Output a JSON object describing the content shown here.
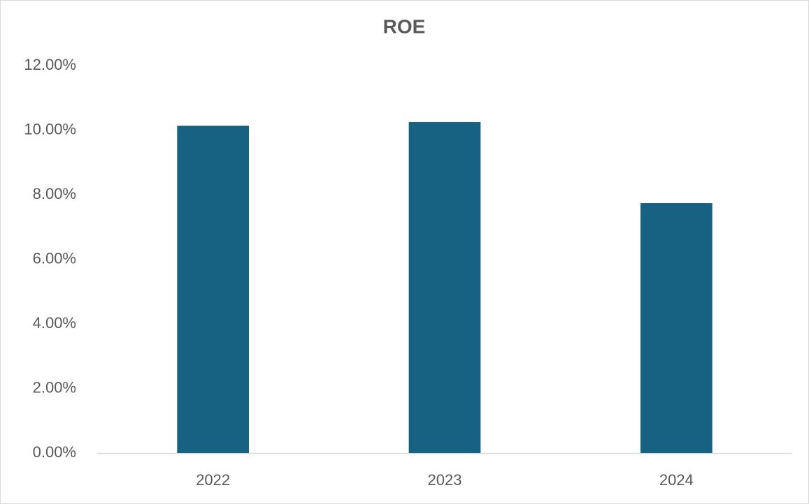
{
  "chart_data": {
    "type": "bar",
    "title": "ROE",
    "categories": [
      "2022",
      "2023",
      "2024"
    ],
    "values": [
      10.14,
      10.25,
      7.74
    ],
    "color": "#176182",
    "ylim": [
      0,
      12
    ],
    "yticks": [
      {
        "value": 0,
        "label": "0.00%"
      },
      {
        "value": 2,
        "label": "2.00%"
      },
      {
        "value": 4,
        "label": "4.00%"
      },
      {
        "value": 6,
        "label": "6.00%"
      },
      {
        "value": 8,
        "label": "8.00%"
      },
      {
        "value": 10,
        "label": "10.00%"
      },
      {
        "value": 12,
        "label": "12.00%"
      }
    ],
    "grid": false
  }
}
